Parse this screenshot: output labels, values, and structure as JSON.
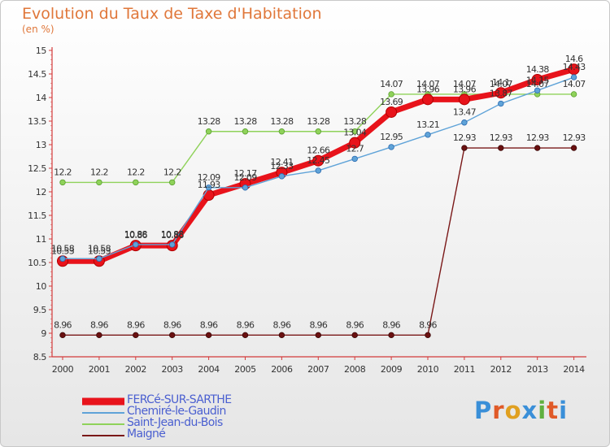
{
  "title": "Evolution du Taux de Taxe d'Habitation",
  "unit": "(en %)",
  "brand": "Proxiti",
  "brand_colors": [
    "#3a8fd8",
    "#e05a28",
    "#e0a020",
    "#3a8fd8",
    "#60b040",
    "#e05a28",
    "#3a8fd8"
  ],
  "chart_data": {
    "type": "line",
    "title": "Evolution du Taux de Taxe d'Habitation",
    "ylabel": "(en %)",
    "xlabel": "",
    "ylim": [
      8.5,
      15
    ],
    "grid": false,
    "legend_position": "bottom-left",
    "categories": [
      "2000",
      "2001",
      "2002",
      "2003",
      "2004",
      "2005",
      "2006",
      "2007",
      "2008",
      "2009",
      "2010",
      "2011",
      "2012",
      "2013",
      "2014"
    ],
    "y_ticks": [
      "8.5",
      "9",
      "9.5",
      "10",
      "10.5",
      "11",
      "11.5",
      "12",
      "12.5",
      "13",
      "13.5",
      "14",
      "14.5",
      "15"
    ],
    "series": [
      {
        "name": "FERCé-SUR-SARTHE",
        "color": "#e8131b",
        "values": [
          10.53,
          10.53,
          10.86,
          10.86,
          11.93,
          12.17,
          12.41,
          12.66,
          13.04,
          13.69,
          13.96,
          13.96,
          14.1,
          14.38,
          14.6
        ],
        "labels": [
          "10.53",
          "10.53",
          "10.86",
          "10.86",
          "11.93",
          "12.17",
          "12.41",
          "12.66",
          "13.04",
          "13.69",
          "13.96",
          "13.96",
          "14.1",
          "14.38",
          "14.6"
        ]
      },
      {
        "name": "Chemiré-le-Gaudin",
        "color": "#5fa3d8",
        "values": [
          10.58,
          10.58,
          10.88,
          10.88,
          12.09,
          12.09,
          12.33,
          12.45,
          12.7,
          12.95,
          13.21,
          13.47,
          13.87,
          14.15,
          14.43
        ],
        "labels": [
          "10.58",
          "10.58",
          "10.88",
          "10.88",
          "12.09",
          "12.09",
          "12.33",
          "12.45",
          "12.7",
          "12.95",
          "13.21",
          "13.47",
          "13.87",
          "14.15",
          "14.43"
        ]
      },
      {
        "name": "Saint-Jean-du-Bois",
        "color": "#8fd25a",
        "values": [
          12.2,
          12.2,
          12.2,
          12.2,
          13.28,
          13.28,
          13.28,
          13.28,
          13.28,
          14.07,
          14.07,
          14.07,
          14.07,
          14.07,
          14.07
        ],
        "labels": [
          "12.2",
          "12.2",
          "12.2",
          "12.2",
          "13.28",
          "13.28",
          "13.28",
          "13.28",
          "13.28",
          "14.07",
          "14.07",
          "14.07",
          "14.07",
          "14.07",
          "14.07"
        ]
      },
      {
        "name": "Maigné",
        "color": "#7a1818",
        "values": [
          8.96,
          8.96,
          8.96,
          8.96,
          8.96,
          8.96,
          8.96,
          8.96,
          8.96,
          8.96,
          8.96,
          12.93,
          12.93,
          12.93,
          12.93
        ],
        "labels": [
          "8.96",
          "8.96",
          "8.96",
          "8.96",
          "8.96",
          "8.96",
          "8.96",
          "8.96",
          "8.96",
          "8.96",
          "8.96",
          "12.93",
          "12.93",
          "12.93",
          "12.93"
        ]
      }
    ]
  }
}
